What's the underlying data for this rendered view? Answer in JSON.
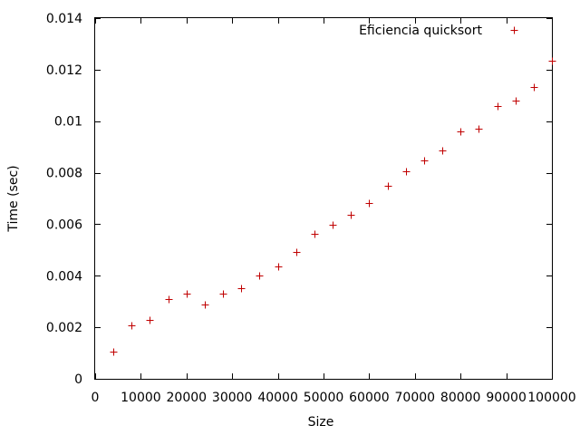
{
  "chart_data": {
    "type": "scatter",
    "xlabel": "Size",
    "ylabel": "Time (sec)",
    "xlim": [
      0,
      100000
    ],
    "ylim": [
      0,
      0.014
    ],
    "xticks": [
      0,
      10000,
      20000,
      30000,
      40000,
      50000,
      60000,
      70000,
      80000,
      90000,
      100000
    ],
    "xtick_labels": [
      "0",
      "10000",
      "20000",
      "30000",
      "40000",
      "50000",
      "60000",
      "70000",
      "80000",
      "90000",
      "100000"
    ],
    "yticks": [
      0,
      0.002,
      0.004,
      0.006,
      0.008,
      0.01,
      0.012,
      0.014
    ],
    "ytick_labels": [
      "0",
      "0.002",
      "0.004",
      "0.006",
      "0.008",
      "0.01",
      "0.012",
      "0.014"
    ],
    "grid": false,
    "legend_position": "top-right",
    "series": [
      {
        "name": "Eficiencia quicksort",
        "color": "#c00000",
        "marker": "plus",
        "x": [
          4000,
          8000,
          12000,
          16000,
          20000,
          24000,
          28000,
          32000,
          36000,
          40000,
          44000,
          48000,
          52000,
          56000,
          60000,
          64000,
          68000,
          72000,
          76000,
          80000,
          84000,
          88000,
          92000,
          96000,
          100000
        ],
        "y": [
          0.00107,
          0.00206,
          0.00227,
          0.00311,
          0.00332,
          0.0029,
          0.00332,
          0.00353,
          0.004,
          0.00437,
          0.00494,
          0.00564,
          0.00597,
          0.00637,
          0.00684,
          0.00751,
          0.00804,
          0.00848,
          0.00888,
          0.00962,
          0.00972,
          0.0106,
          0.01079,
          0.01133,
          0.01234
        ]
      }
    ]
  }
}
